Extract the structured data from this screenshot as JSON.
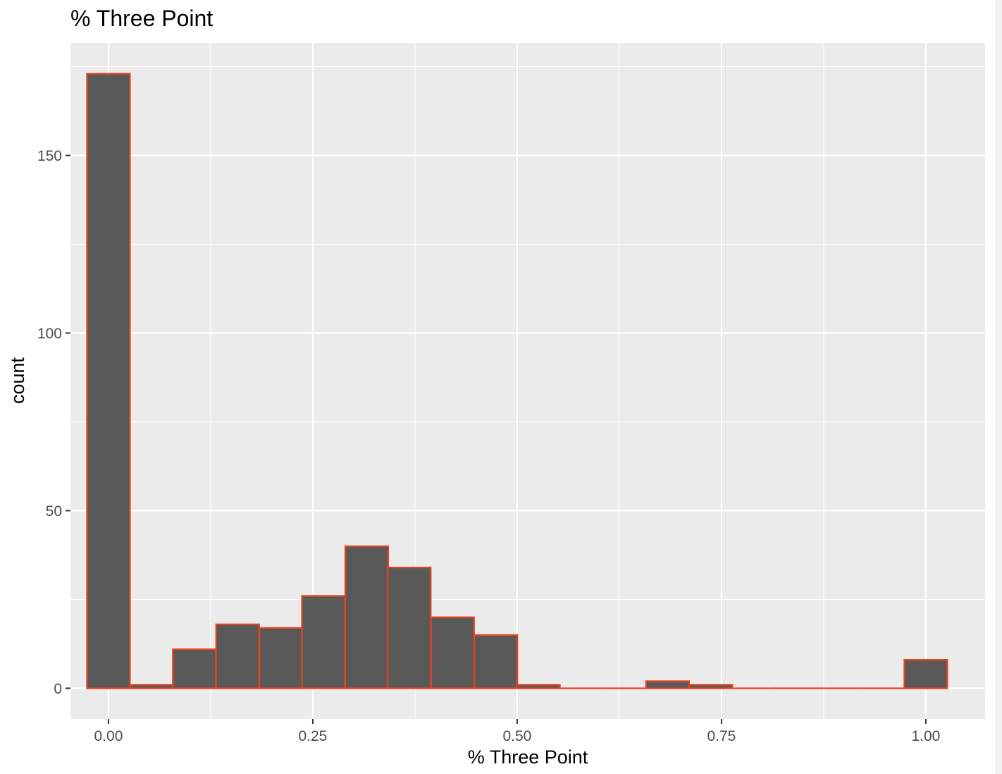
{
  "chart_data": {
    "type": "bar",
    "title": "% Three Point",
    "xlabel": "% Three Point",
    "ylabel": "count",
    "bin_width": 0.0526,
    "bins": [
      {
        "x": 0.0,
        "count": 173
      },
      {
        "x": 0.053,
        "count": 1
      },
      {
        "x": 0.105,
        "count": 11
      },
      {
        "x": 0.158,
        "count": 18
      },
      {
        "x": 0.211,
        "count": 17
      },
      {
        "x": 0.263,
        "count": 26
      },
      {
        "x": 0.316,
        "count": 40
      },
      {
        "x": 0.368,
        "count": 34
      },
      {
        "x": 0.421,
        "count": 20
      },
      {
        "x": 0.474,
        "count": 15
      },
      {
        "x": 0.526,
        "count": 1
      },
      {
        "x": 0.579,
        "count": 0
      },
      {
        "x": 0.632,
        "count": 0
      },
      {
        "x": 0.684,
        "count": 2
      },
      {
        "x": 0.737,
        "count": 1
      },
      {
        "x": 0.789,
        "count": 0
      },
      {
        "x": 0.842,
        "count": 0
      },
      {
        "x": 0.895,
        "count": 0
      },
      {
        "x": 0.947,
        "count": 0
      },
      {
        "x": 1.0,
        "count": 8
      }
    ],
    "xlim": [
      -0.0465,
      1.0725
    ],
    "ylim": [
      -8.65,
      181.65
    ],
    "x_ticks": [
      0,
      0.25,
      0.5,
      0.75,
      1
    ],
    "x_tick_labels": [
      "0.00",
      "0.25",
      "0.50",
      "0.75",
      "1.00"
    ],
    "y_ticks": [
      0,
      50,
      100,
      150
    ],
    "y_tick_labels": [
      "0",
      "50",
      "100",
      "150"
    ],
    "grid": true,
    "colors": {
      "panel_background": "#ebebeb",
      "bar_fill": "#595959",
      "bar_outline": "#e8431f",
      "gridline": "#ffffff",
      "tick_label": "#4d4d4d",
      "text": "#000000"
    }
  }
}
